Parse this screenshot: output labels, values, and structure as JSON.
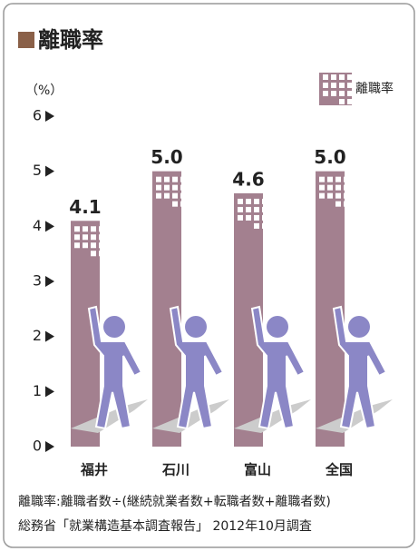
{
  "chart_data": {
    "type": "bar",
    "title": "離職率",
    "y_unit_label": "（%）",
    "categories": [
      "福井",
      "石川",
      "富山",
      "全国"
    ],
    "series": [
      {
        "name": "離職率",
        "color": "#a3808f",
        "values": [
          4.1,
          5.0,
          4.6,
          5.0
        ],
        "value_labels": [
          "4.1",
          "5.0",
          "4.6",
          "5.0"
        ]
      }
    ],
    "ylim": [
      0,
      6
    ],
    "yticks": [
      0,
      1,
      2,
      3,
      4,
      5,
      6
    ],
    "notes": [
      "離職率:離職者数÷(継続就業者数+転職者数+離職者数)",
      "総務省「就業構造基本調査報告」 2012年10月調査"
    ]
  }
}
